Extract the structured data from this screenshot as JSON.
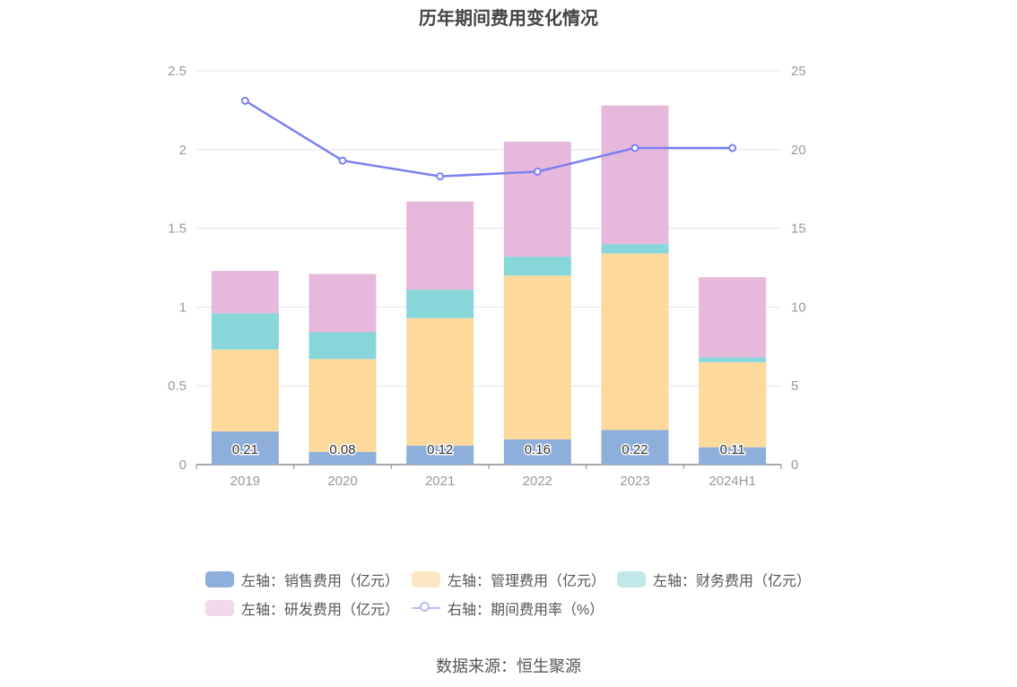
{
  "title": "历年期间费用变化情况",
  "source": "数据来源：恒生聚源",
  "chart_data": {
    "type": "bar",
    "stacked": true,
    "categories": [
      "2019",
      "2020",
      "2021",
      "2022",
      "2023",
      "2024H1"
    ],
    "left_axis": {
      "ylim": [
        0,
        2.5
      ],
      "ticks": [
        "0",
        "0.5",
        "1",
        "1.5",
        "2",
        "2.5"
      ]
    },
    "right_axis": {
      "ylim": [
        0,
        25
      ],
      "ticks": [
        "0",
        "5",
        "10",
        "15",
        "20",
        "25"
      ]
    },
    "series": [
      {
        "name": "左轴：销售费用（亿元）",
        "values": [
          0.21,
          0.08,
          0.12,
          0.16,
          0.22,
          0.11
        ],
        "labels": [
          "0.21",
          "0.08",
          "0.12",
          "0.16",
          "0.22",
          "0.11"
        ],
        "color": "#8eaedb",
        "axis": "left"
      },
      {
        "name": "左轴：管理费用（亿元）",
        "values": [
          0.52,
          0.59,
          0.81,
          1.04,
          1.12,
          0.54
        ],
        "color": "#fdd99b",
        "axis": "left"
      },
      {
        "name": "左轴：财务费用（亿元）",
        "values": [
          0.23,
          0.17,
          0.18,
          0.12,
          0.06,
          0.03
        ],
        "color": "#87d6d9",
        "axis": "left"
      },
      {
        "name": "左轴：研发费用（亿元）",
        "values": [
          0.27,
          0.37,
          0.56,
          0.73,
          0.88,
          0.51
        ],
        "color": "#e6b9dc",
        "axis": "left"
      },
      {
        "name": "右轴：期间费用率（%）",
        "type": "line",
        "values": [
          23.1,
          19.3,
          18.3,
          18.6,
          20.1,
          20.1
        ],
        "color": "#7b80f0",
        "axis": "right"
      }
    ],
    "legend_position": "bottom",
    "grid": true
  }
}
